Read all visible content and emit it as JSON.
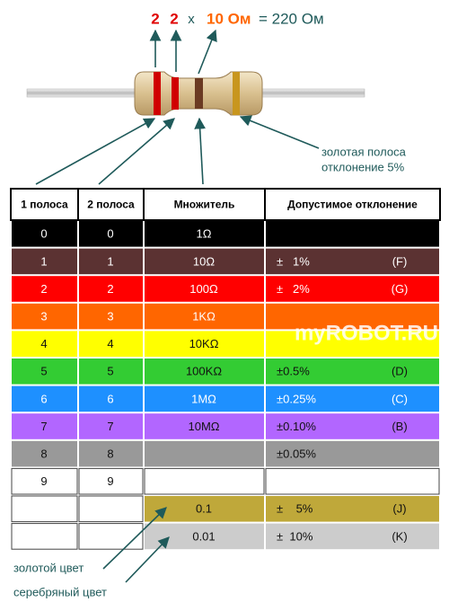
{
  "formula": {
    "digit1": "2",
    "digit2": "2",
    "times": "x",
    "multiplier": "10 Ом",
    "result": "= 220 Ом"
  },
  "gold_note": {
    "line1": "золотая полоса",
    "line2": "отклонение 5%"
  },
  "watermark": "myROBOT.RU",
  "table": {
    "headers": [
      "1 полоса",
      "2 полоса",
      "Множитель",
      "Допустимое отклонение"
    ],
    "rows": [
      {
        "color": "#000000",
        "band1": "0",
        "band2": "0",
        "multiplier": "1Ω"
      },
      {
        "color": "#5b3232",
        "band1": "1",
        "band2": "1",
        "multiplier": "10Ω",
        "tolerance": "±   1%",
        "code": "(F)"
      },
      {
        "color": "#ff0000",
        "band1": "2",
        "band2": "2",
        "multiplier": "100Ω",
        "tolerance": "±   2%",
        "code": "(G)"
      },
      {
        "color": "#ff6600",
        "band1": "3",
        "band2": "3",
        "multiplier": "1KΩ"
      },
      {
        "color": "#ffff00",
        "band1": "4",
        "band2": "4",
        "multiplier": "10KΩ"
      },
      {
        "color": "#33cc33",
        "band1": "5",
        "band2": "5",
        "multiplier": "100KΩ",
        "tolerance": "±0.5%",
        "code": "(D)"
      },
      {
        "color": "#1e90ff",
        "band1": "6",
        "band2": "6",
        "multiplier": "1MΩ",
        "tolerance": "±0.25%",
        "code": "(C)"
      },
      {
        "color": "#b266ff",
        "band1": "7",
        "band2": "7",
        "multiplier": "10MΩ",
        "tolerance": "±0.10%",
        "code": "(B)"
      },
      {
        "color": "#999999",
        "band1": "8",
        "band2": "8",
        "tolerance": "±0.05%"
      },
      {
        "color": "#ffffff",
        "band1": "9",
        "band2": "9"
      },
      {
        "color": "#bfa83a",
        "multiplier": "0.1",
        "tolerance": "±    5%",
        "code": "(J)"
      },
      {
        "color": "#cccccc",
        "multiplier": "0.01",
        "tolerance": "±  10%",
        "code": "(K)"
      }
    ]
  },
  "notes": {
    "gold": "золотой цвет",
    "silver": "серебряный цвет"
  }
}
